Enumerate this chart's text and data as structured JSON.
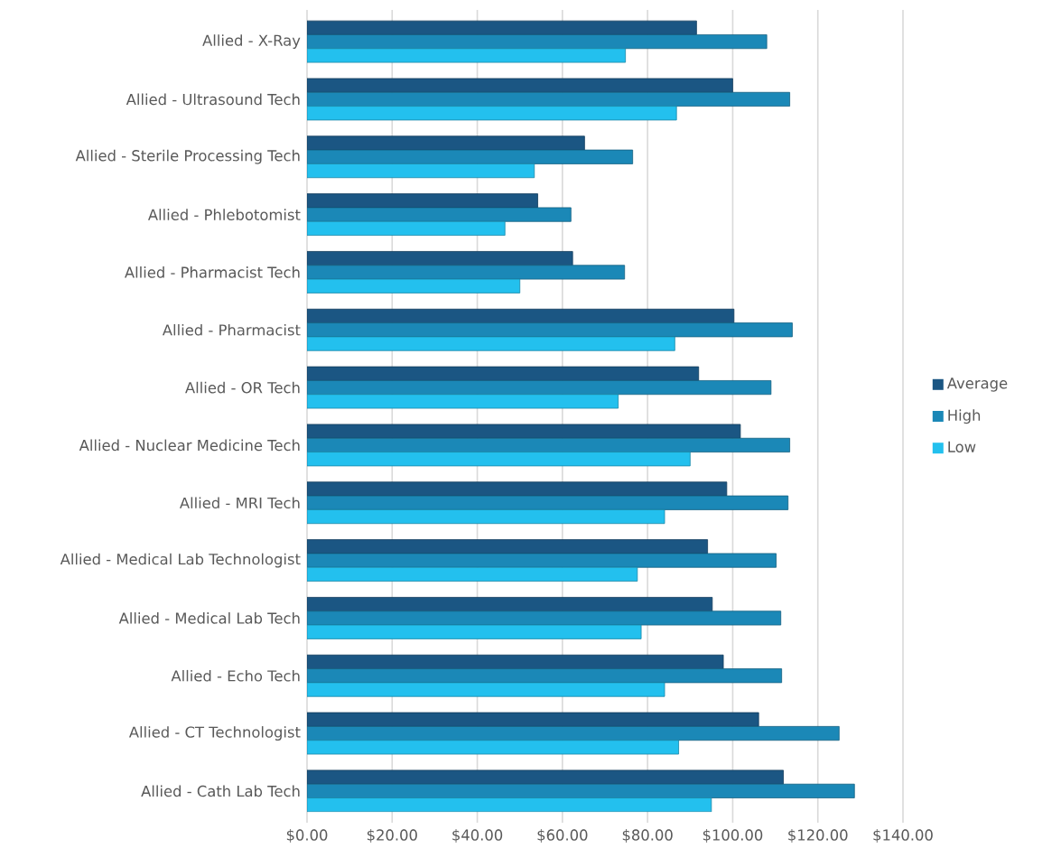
{
  "chart_data": {
    "type": "bar",
    "orientation": "horizontal",
    "categories": [
      "Allied - X-Ray",
      "Allied - Ultrasound Tech",
      "Allied - Sterile Processing Tech",
      "Allied - Phlebotomist",
      "Allied - Pharmacist Tech",
      "Allied - Pharmacist",
      "Allied - OR Tech",
      "Allied - Nuclear Medicine Tech",
      "Allied - MRI Tech",
      "Allied - Medical Lab Technologist",
      "Allied - Medical Lab Tech",
      "Allied - Echo Tech",
      "Allied - CT Technologist",
      "Allied - Cath Lab Tech"
    ],
    "series": [
      {
        "name": "Average",
        "color": "#1b5683",
        "values": [
          91.5,
          100,
          65.2,
          54.2,
          62.4,
          100.3,
          92,
          101.8,
          98.6,
          94.1,
          95.2,
          97.8,
          106.1,
          111.9
        ]
      },
      {
        "name": "High",
        "color": "#1b88b7",
        "values": [
          108,
          113.4,
          76.5,
          62,
          74.6,
          114,
          109,
          113.4,
          113,
          110.2,
          111.3,
          111.5,
          125,
          128.6
        ]
      },
      {
        "name": "Low",
        "color": "#23c0ee",
        "values": [
          74.8,
          86.8,
          53.4,
          46.5,
          50,
          86.4,
          73.1,
          90,
          84,
          77.6,
          78.5,
          84,
          87.3,
          95
        ]
      }
    ],
    "xlim": [
      0,
      140
    ],
    "xticks": [
      {
        "value": 0,
        "label": "$0.00"
      },
      {
        "value": 20,
        "label": "$20.00"
      },
      {
        "value": 40,
        "label": "$40.00"
      },
      {
        "value": 60,
        "label": "$60.00"
      },
      {
        "value": 80,
        "label": "$80.00"
      },
      {
        "value": 100,
        "label": "$100.00"
      },
      {
        "value": 120,
        "label": "$120.00"
      },
      {
        "value": 140,
        "label": "$140.00"
      }
    ],
    "grid": "x",
    "legend": "right"
  }
}
